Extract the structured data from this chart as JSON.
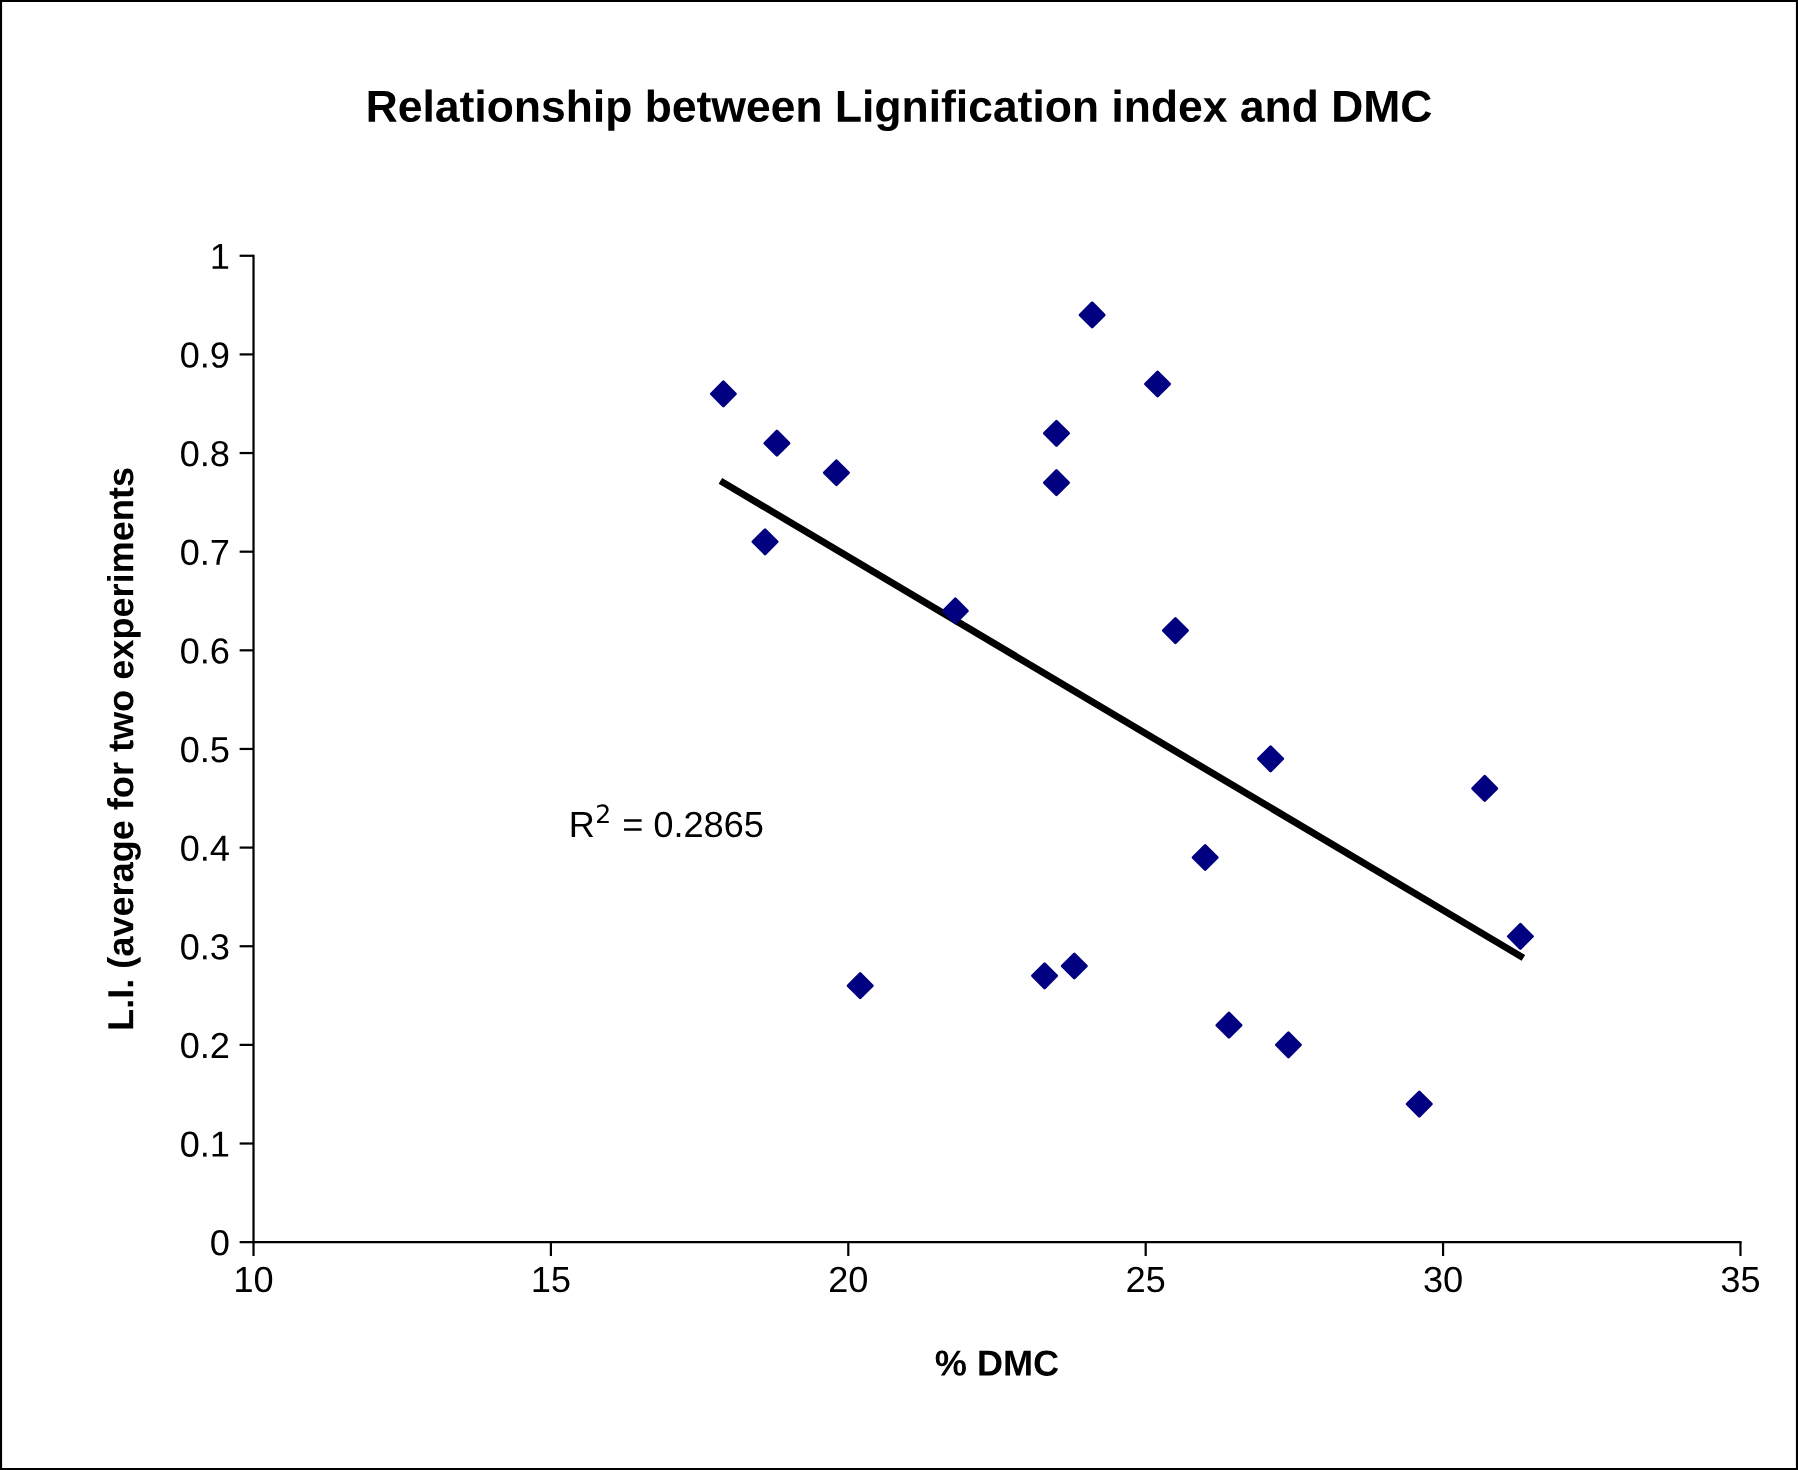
{
  "chart_data": {
    "type": "scatter",
    "title": "Relationship between Lignification index and DMC",
    "xlabel": "% DMC",
    "ylabel": "L.I. (average for two experiments",
    "annotations": [
      "R$^{2}$ = 0.2865"
    ],
    "xlim": [
      10,
      35
    ],
    "xticks": [
      10,
      15,
      20,
      25,
      30,
      35
    ],
    "ylim": [
      0,
      1
    ],
    "yticks": [
      0,
      0.1,
      0.2,
      0.3,
      0.4,
      0.5,
      0.6,
      0.7,
      0.8,
      0.9,
      1
    ],
    "grid": false,
    "legend": false,
    "series": [
      {
        "color": "#000080",
        "marker": "diamond",
        "x": [
          17.9,
          18.8,
          18.6,
          19.8,
          21.8,
          20.2,
          24.1,
          23.5,
          23.5,
          25.2,
          25.5,
          27.1,
          26.0,
          26.4,
          27.4,
          23.3,
          23.8,
          29.6,
          30.7,
          31.3
        ],
        "values": [
          0.86,
          0.81,
          0.71,
          0.78,
          0.64,
          0.26,
          0.94,
          0.82,
          0.77,
          0.87,
          0.62,
          0.49,
          0.39,
          0.22,
          0.2,
          0.27,
          0.28,
          0.14,
          0.46,
          0.31
        ]
      },
      {
        "type": "line",
        "color": "#000000",
        "marker": "none",
        "line_style": "solid",
        "x": [
          17.9,
          31.3
        ],
        "values": [
          0.77,
          0.29
        ]
      }
    ]
  }
}
